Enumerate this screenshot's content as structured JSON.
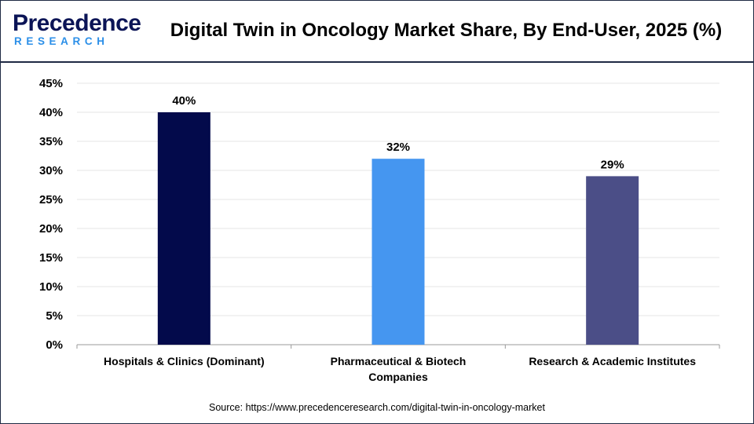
{
  "brand": {
    "logo_top": "Precedence",
    "logo_bottom": "RESEARCH",
    "colors": {
      "navy": "#0b1456",
      "blue": "#2b8fe8"
    }
  },
  "header": {
    "title": "Digital Twin in Oncology Market Share, By End-User, 2025 (%)"
  },
  "chart_data": {
    "type": "bar",
    "title": "Digital Twin in Oncology Market Share, By End-User, 2025 (%)",
    "categories": [
      [
        "Hospitals & Clinics (Dominant)"
      ],
      [
        "Pharmaceutical & Biotech",
        "Companies"
      ],
      [
        "Research & Academic Institutes"
      ]
    ],
    "values": [
      40,
      32,
      29
    ],
    "value_labels": [
      "40%",
      "32%",
      "29%"
    ],
    "bar_colors": [
      "#030a4b",
      "#4596f0",
      "#4b4e87"
    ],
    "ylim": [
      0,
      45
    ],
    "yticks": [
      0,
      5,
      10,
      15,
      20,
      25,
      30,
      35,
      40,
      45
    ],
    "ytick_labels": [
      "0%",
      "5%",
      "10%",
      "15%",
      "20%",
      "25%",
      "30%",
      "35%",
      "40%",
      "45%"
    ],
    "grid": true,
    "xlabel": "",
    "ylabel": ""
  },
  "footer": {
    "source": "Source: https://www.precedenceresearch.com/digital-twin-in-oncology-market"
  }
}
